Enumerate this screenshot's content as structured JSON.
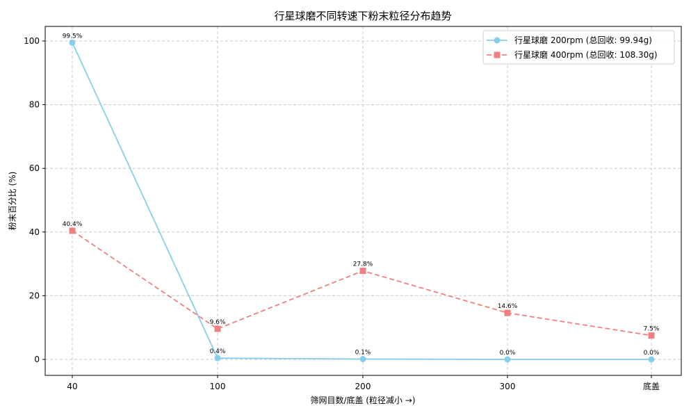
{
  "chart_data": {
    "type": "line",
    "title": "行星球磨不同转速下粉末粒径分布趋势",
    "xlabel": "筛网目数/底盖 (粒径减小 →)",
    "ylabel": "粉末百分比 (%)",
    "categories": [
      "40",
      "100",
      "200",
      "300",
      "底盖"
    ],
    "ylim": [
      -5,
      104.5
    ],
    "yticks": [
      0,
      20,
      40,
      60,
      80,
      100
    ],
    "grid": true,
    "legend_position": "upper right",
    "series": [
      {
        "name": "行星球磨 200rpm (总回收: 99.94g)",
        "values": [
          99.5,
          0.4,
          0.1,
          0.0,
          0.0
        ],
        "labels": [
          "99.5%",
          "0.4%",
          "0.1%",
          "0.0%",
          "0.0%"
        ],
        "color": "#87ceeb",
        "marker": "circle",
        "linestyle": "solid"
      },
      {
        "name": "行星球磨 400rpm (总回收: 108.30g)",
        "values": [
          40.4,
          9.6,
          27.8,
          14.6,
          7.5
        ],
        "labels": [
          "40.4%",
          "9.6%",
          "27.8%",
          "14.6%",
          "7.5%"
        ],
        "color": "#f08080",
        "marker": "square",
        "linestyle": "dashed"
      }
    ]
  }
}
